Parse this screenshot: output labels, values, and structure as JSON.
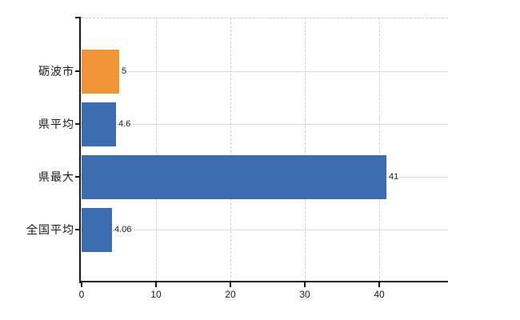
{
  "chart_data": {
    "type": "bar",
    "orientation": "horizontal",
    "title": "",
    "xlabel": "",
    "ylabel": "",
    "categories": [
      "砺波市",
      "県平均",
      "県最大",
      "全国平均"
    ],
    "values": [
      5,
      4.6,
      41,
      4.06
    ],
    "value_labels": [
      "5",
      "4.6",
      "41",
      "4.06"
    ],
    "bar_colors": [
      "#ef9438",
      "#3c6db1",
      "#3c6db1",
      "#3c6db1"
    ],
    "highlight_color": "#ef9438",
    "series_color": "#3c6db1",
    "x_ticks": [
      "0",
      "10",
      "20",
      "30",
      "40"
    ],
    "x_tick_values": [
      0,
      10,
      20,
      30,
      40
    ],
    "xlim": [
      0,
      49.35
    ],
    "grid": true,
    "legend_position": "none",
    "colors": {
      "grid_horizontal": "#d9ddd9",
      "grid_vertical_dashed": "#cfd3cf",
      "plot_top_border_dashed": "#c9c9c9",
      "axis": "#1a1a1a",
      "category_text": "#1a1a1a",
      "value_text": "#222222",
      "background": "#ffffff"
    }
  }
}
